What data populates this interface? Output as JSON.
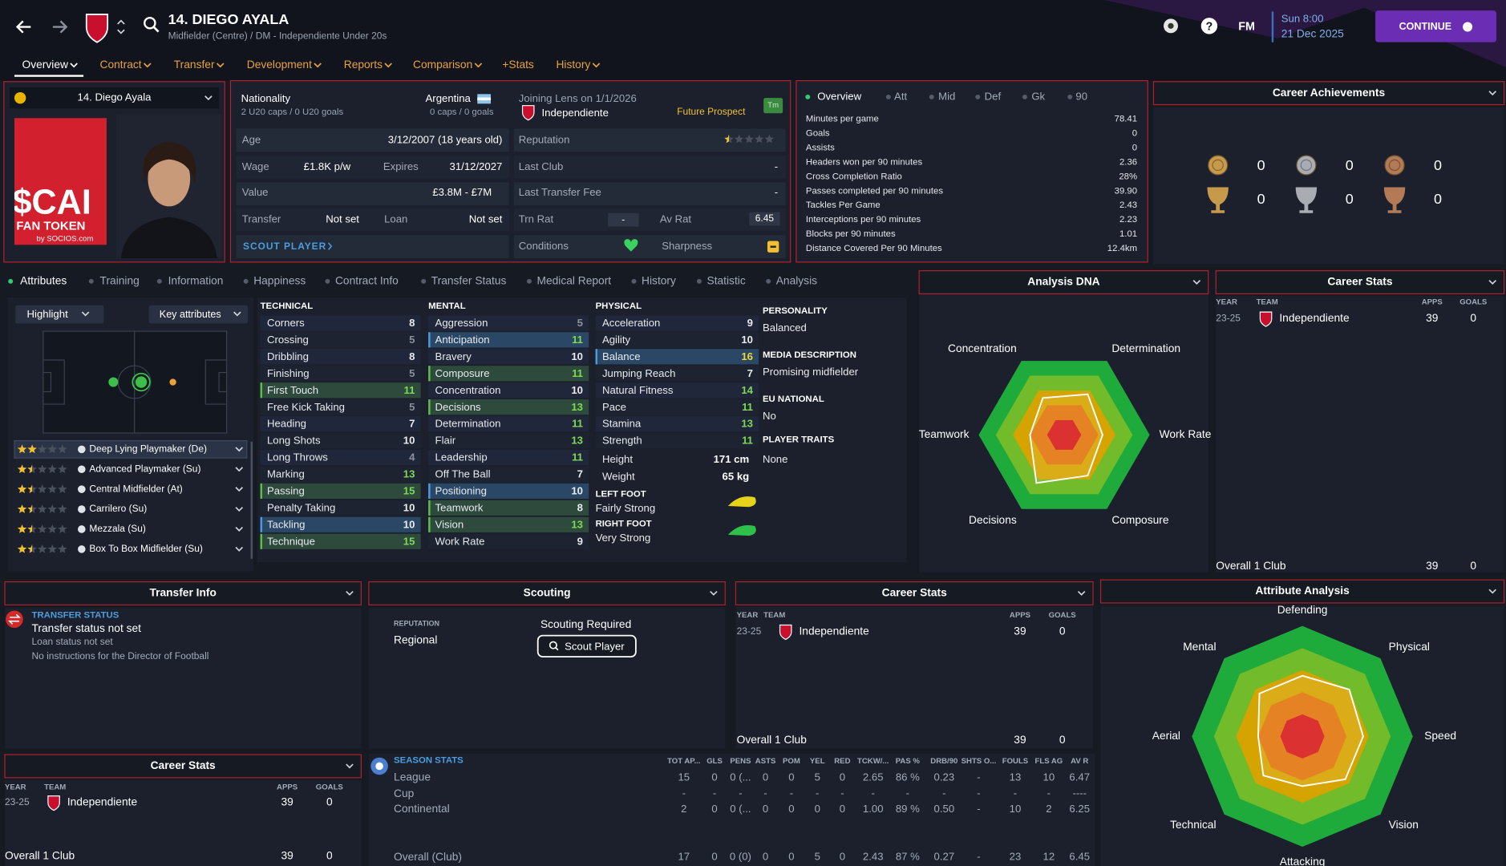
{
  "header": {
    "title": "14. DIEGO AYALA",
    "subtitle": "Midfielder (Centre) / DM - Independiente Under 20s",
    "help": "?",
    "brand": "FM",
    "time": "Sun 8:00",
    "date": "21 Dec 2025",
    "continue": "CONTINUE"
  },
  "nav": [
    "Overview",
    "Contract",
    "Transfer",
    "Development",
    "Reports",
    "Comparison",
    "+Stats",
    "History"
  ],
  "profile": {
    "selector": "14. Diego Ayala",
    "sponsor": "$CAI",
    "sponsor_sub": "FAN TOKEN",
    "sponsor_by": "by SOCIOS.com"
  },
  "info": {
    "nationality_label": "Nationality",
    "nationality": "Argentina",
    "youth_caps": "2 U20 caps / 0 U20 goals",
    "caps": "0 caps / 0 goals",
    "joining": "Joining Lens on 1/1/2026",
    "club": "Independiente",
    "tag": "Future Prospect",
    "tm": "Tm",
    "age_label": "Age",
    "age": "3/12/2007 (18 years old)",
    "wage_label": "Wage",
    "wage": "£1.8K p/w",
    "expires_label": "Expires",
    "expires": "31/12/2027",
    "value_label": "Value",
    "value": "£3.8M - £7M",
    "transfer_label": "Transfer",
    "transfer": "Not set",
    "loan_label": "Loan",
    "loan": "Not set",
    "scout": "SCOUT PLAYER",
    "reputation_label": "Reputation",
    "reputation_stars": 0.5,
    "last_club_label": "Last Club",
    "last_club": "-",
    "fee_label": "Last Transfer Fee",
    "fee": "-",
    "trn_label": "Trn Rat",
    "trn": "-",
    "av_label": "Av Rat",
    "av": "6.45",
    "conditions_label": "Conditions",
    "sharpness_label": "Sharpness"
  },
  "overview": {
    "tabs": [
      "Overview",
      "Att",
      "Mid",
      "Def",
      "Gk",
      "90"
    ],
    "stats": [
      {
        "label": "Minutes per game",
        "value": "78.41"
      },
      {
        "label": "Goals",
        "value": "0"
      },
      {
        "label": "Assists",
        "value": "0"
      },
      {
        "label": "Headers won per 90 minutes",
        "value": "2.36"
      },
      {
        "label": "Cross Completion Ratio",
        "value": "28%"
      },
      {
        "label": "Passes completed per 90 minutes",
        "value": "39.90"
      },
      {
        "label": "Tackles Per Game",
        "value": "2.43"
      },
      {
        "label": "Interceptions per 90 minutes",
        "value": "2.23"
      },
      {
        "label": "Blocks per 90 minutes",
        "value": "1.01"
      },
      {
        "label": "Distance Covered Per 90 Minutes",
        "value": "12.4km"
      }
    ]
  },
  "achievements": {
    "title": "Career Achievements",
    "counts": [
      0,
      0,
      0,
      0,
      0,
      0
    ]
  },
  "attr_tabs": [
    "Attributes",
    "Training",
    "Information",
    "Happiness",
    "Contract Info",
    "Transfer Status",
    "Medical Report",
    "History",
    "Statistic",
    "Analysis"
  ],
  "roles": {
    "highlight": "Highlight",
    "key": "Key attributes",
    "list": [
      {
        "name": "Deep Lying Playmaker (De)",
        "stars": 2,
        "selected": true
      },
      {
        "name": "Advanced Playmaker (Su)",
        "stars": 1.5
      },
      {
        "name": "Central Midfielder (At)",
        "stars": 1.5
      },
      {
        "name": "Carrilero (Su)",
        "stars": 1.5
      },
      {
        "name": "Mezzala (Su)",
        "stars": 1.5
      },
      {
        "name": "Box To Box Midfielder (Su)",
        "stars": 1.5
      }
    ]
  },
  "attributes": {
    "technical": {
      "title": "TECHNICAL",
      "items": [
        {
          "name": "Corners",
          "value": 8
        },
        {
          "name": "Crossing",
          "value": 5
        },
        {
          "name": "Dribbling",
          "value": 8
        },
        {
          "name": "Finishing",
          "value": 5
        },
        {
          "name": "First Touch",
          "value": 11,
          "highlight": "key"
        },
        {
          "name": "Free Kick Taking",
          "value": 5
        },
        {
          "name": "Heading",
          "value": 7
        },
        {
          "name": "Long Shots",
          "value": 10
        },
        {
          "name": "Long Throws",
          "value": 4
        },
        {
          "name": "Marking",
          "value": 13
        },
        {
          "name": "Passing",
          "value": 15,
          "highlight": "key"
        },
        {
          "name": "Penalty Taking",
          "value": 10
        },
        {
          "name": "Tackling",
          "value": 10,
          "highlight": "focus"
        },
        {
          "name": "Technique",
          "value": 15,
          "highlight": "key"
        }
      ]
    },
    "mental": {
      "title": "MENTAL",
      "items": [
        {
          "name": "Aggression",
          "value": 5
        },
        {
          "name": "Anticipation",
          "value": 11,
          "highlight": "focus"
        },
        {
          "name": "Bravery",
          "value": 10
        },
        {
          "name": "Composure",
          "value": 11,
          "highlight": "key"
        },
        {
          "name": "Concentration",
          "value": 10
        },
        {
          "name": "Decisions",
          "value": 13,
          "highlight": "key"
        },
        {
          "name": "Determination",
          "value": 11
        },
        {
          "name": "Flair",
          "value": 13
        },
        {
          "name": "Leadership",
          "value": 11
        },
        {
          "name": "Off The Ball",
          "value": 7
        },
        {
          "name": "Positioning",
          "value": 10,
          "highlight": "focus"
        },
        {
          "name": "Teamwork",
          "value": 8,
          "highlight": "key"
        },
        {
          "name": "Vision",
          "value": 13,
          "highlight": "key"
        },
        {
          "name": "Work Rate",
          "value": 9
        }
      ]
    },
    "physical": {
      "title": "PHYSICAL",
      "items": [
        {
          "name": "Acceleration",
          "value": 9
        },
        {
          "name": "Agility",
          "value": 10
        },
        {
          "name": "Balance",
          "value": 16,
          "highlight": "focus"
        },
        {
          "name": "Jumping Reach",
          "value": 7
        },
        {
          "name": "Natural Fitness",
          "value": 14
        },
        {
          "name": "Pace",
          "value": 11
        },
        {
          "name": "Stamina",
          "value": 13
        },
        {
          "name": "Strength",
          "value": 11
        }
      ],
      "height_label": "Height",
      "height": "171 cm",
      "weight_label": "Weight",
      "weight": "65 kg",
      "left_foot_label": "LEFT FOOT",
      "left_foot": "Fairly Strong",
      "right_foot_label": "RIGHT FOOT",
      "right_foot": "Very Strong"
    }
  },
  "details": [
    {
      "label": "PERSONALITY",
      "value": "Balanced"
    },
    {
      "label": "MEDIA DESCRIPTION",
      "value": "Promising midfielder"
    },
    {
      "label": "EU NATIONAL",
      "value": "No"
    },
    {
      "label": "PLAYER TRAITS",
      "value": "None"
    }
  ],
  "dna": {
    "title": "Analysis DNA",
    "axes": [
      "Concentration",
      "Determination",
      "Work Rate",
      "Composure",
      "Decisions",
      "Teamwork"
    ],
    "values": [
      10,
      11,
      9,
      11,
      13,
      8
    ],
    "rlim": [
      0,
      20
    ]
  },
  "career_stats": {
    "title": "Career Stats",
    "headers": [
      "YEAR",
      "TEAM",
      "APPS",
      "GOALS"
    ],
    "rows": [
      [
        "23-25",
        "Independiente",
        "39",
        "0"
      ]
    ],
    "total": [
      "Overall 1 Club",
      "39",
      "0"
    ]
  },
  "transfer_info": {
    "title": "Transfer Info",
    "status_label": "TRANSFER STATUS",
    "status": "Transfer status not set",
    "loan": "Loan status not set",
    "instructions": "No instructions for the Director of Football"
  },
  "scouting": {
    "title": "Scouting",
    "reputation_label": "REPUTATION",
    "reputation": "Regional",
    "required": "Scouting Required",
    "button": "Scout Player"
  },
  "season_stats": {
    "title": "SEASON STATS",
    "headers": [
      "TOT AP...",
      "GLS",
      "PENS",
      "ASTS",
      "POM",
      "YEL",
      "RED",
      "TCKW/...",
      "PAS %",
      "DRB/90",
      "SHTS O...",
      "FOULS",
      "FLS AG",
      "AV R"
    ],
    "rows": [
      {
        "name": "League",
        "cells": [
          "15",
          "0",
          "0 (...",
          "0",
          "0",
          "5",
          "0",
          "2.65",
          "86 %",
          "0.23",
          "-",
          "13",
          "10",
          "6.47"
        ]
      },
      {
        "name": "Cup",
        "cells": [
          "-",
          "-",
          "-",
          "-",
          "-",
          "-",
          "-",
          "-",
          "-",
          "-",
          "-",
          "-",
          "-",
          "----"
        ]
      },
      {
        "name": "Continental",
        "cells": [
          "2",
          "0",
          "0 (...",
          "0",
          "0",
          "0",
          "0",
          "1.00",
          "89 %",
          "0.50",
          "-",
          "10",
          "2",
          "6.25"
        ]
      },
      {
        "name": "Overall (Club)",
        "cells": [
          "17",
          "0",
          "0 (0)",
          "0",
          "0",
          "5",
          "0",
          "2.43",
          "87 %",
          "0.27",
          "-",
          "23",
          "12",
          "6.45"
        ]
      }
    ]
  },
  "attribute_analysis": {
    "title": "Attribute Analysis",
    "axes": [
      "Defending",
      "Physical",
      "Speed",
      "Vision",
      "Attacking",
      "Technical",
      "Aerial",
      "Mental"
    ],
    "values": [
      55,
      60,
      55,
      55,
      45,
      50,
      40,
      55
    ],
    "rlim": [
      0,
      100
    ]
  }
}
